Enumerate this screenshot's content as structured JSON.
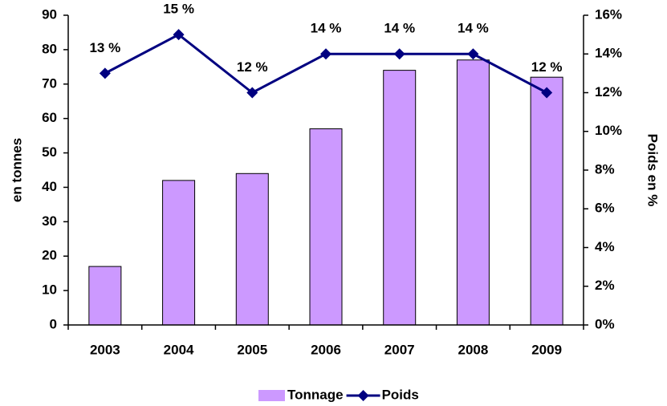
{
  "chart_data": {
    "type": "bar_line",
    "categories": [
      "2003",
      "2004",
      "2005",
      "2006",
      "2007",
      "2008",
      "2009"
    ],
    "ylabel": "en tonnes",
    "y2label": "Poids en %",
    "ylim": [
      0,
      90
    ],
    "yticks": [
      0,
      10,
      20,
      30,
      40,
      50,
      60,
      70,
      80,
      90
    ],
    "y2lim": [
      0,
      16
    ],
    "y2ticks": [
      {
        "value": 0,
        "label": "0%"
      },
      {
        "value": 2,
        "label": "2%"
      },
      {
        "value": 4,
        "label": "4%"
      },
      {
        "value": 6,
        "label": "6%"
      },
      {
        "value": 8,
        "label": "8%"
      },
      {
        "value": 10,
        "label": "10%"
      },
      {
        "value": 12,
        "label": "12%"
      },
      {
        "value": 14,
        "label": "14%"
      },
      {
        "value": 16,
        "label": "16%"
      }
    ],
    "legend": "bottom",
    "series": [
      {
        "name": "Tonnage",
        "type": "bar",
        "color": "#cc99ff",
        "values": [
          17,
          42,
          44,
          57,
          74,
          77,
          72
        ]
      },
      {
        "name": "Poids",
        "type": "line",
        "axis": "y2",
        "color": "#000080",
        "values": [
          13,
          15,
          12,
          14,
          14,
          14,
          12
        ],
        "value_labels": [
          "13 %",
          "15 %",
          "12 %",
          "14 %",
          "14 %",
          "14 %",
          "12 %"
        ]
      }
    ]
  }
}
